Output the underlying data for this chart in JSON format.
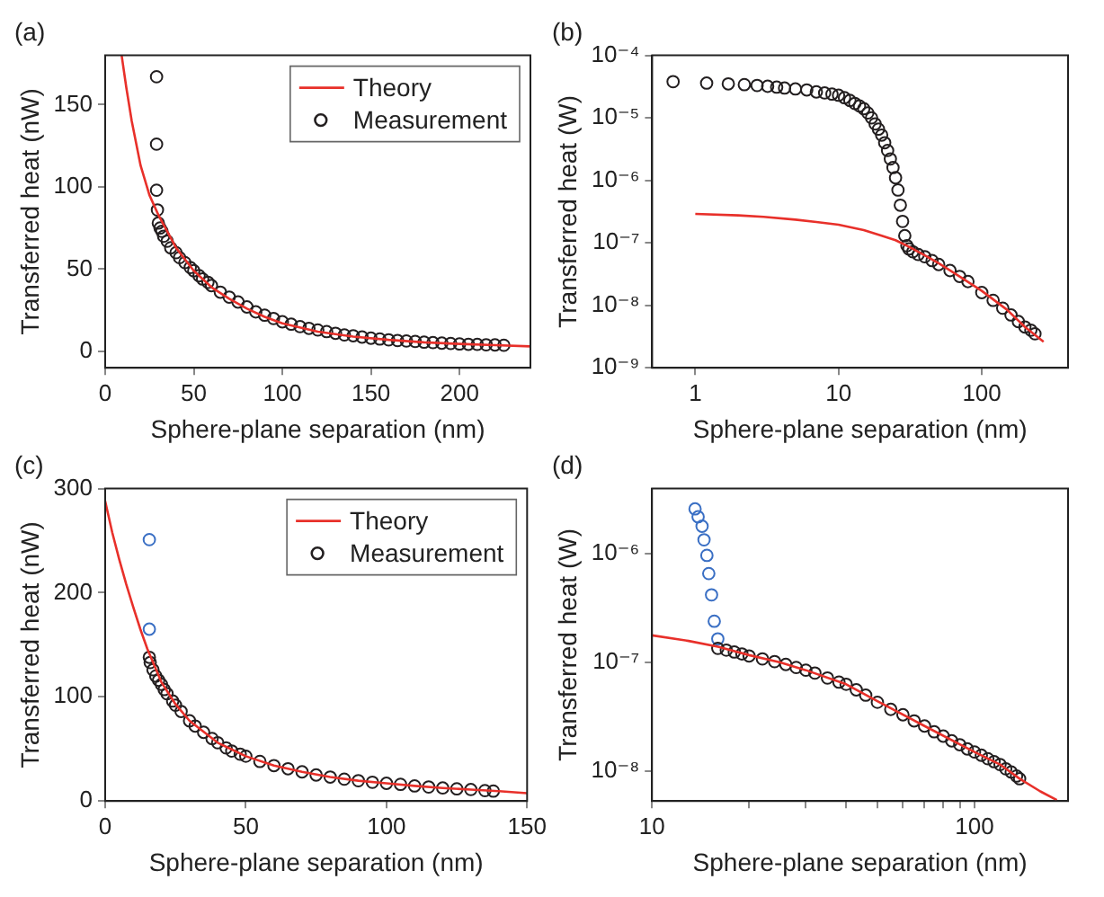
{
  "chart_data": [
    {
      "type": "scatter",
      "title": "(a)",
      "xlabel": "Sphere-plane separation (nm)",
      "ylabel": "Transferred heat (nW)",
      "xlim": [
        0,
        240
      ],
      "ylim": [
        -10,
        180
      ],
      "xticks": [
        0,
        50,
        100,
        150,
        200
      ],
      "yticks": [
        0,
        50,
        100,
        150
      ],
      "legend": "top right",
      "series": [
        {
          "name": "Theory",
          "type": "line",
          "color": "#e8302a",
          "marker": "none",
          "line_style": "solid",
          "x": [
            9.3,
            12,
            15,
            20,
            25,
            30,
            40,
            50,
            60,
            70,
            80,
            90,
            100,
            120,
            140,
            160,
            180,
            200,
            220,
            240
          ],
          "values": [
            180,
            160,
            140,
            113,
            95,
            83,
            63,
            49,
            39,
            32,
            26,
            21,
            17,
            12,
            9,
            7,
            5.5,
            4.5,
            3.8,
            3
          ]
        },
        {
          "name": "Measurement",
          "color": "#231f20",
          "marker": "circle",
          "x": [
            29,
            29,
            29,
            29.5,
            30,
            31,
            32,
            33,
            35,
            37,
            40,
            42,
            45,
            48,
            50,
            53,
            55,
            58,
            60,
            65,
            70,
            75,
            80,
            85,
            90,
            95,
            100,
            105,
            110,
            115,
            120,
            125,
            130,
            135,
            140,
            145,
            150,
            155,
            160,
            165,
            170,
            175,
            180,
            185,
            190,
            195,
            200,
            205,
            210,
            215,
            220,
            225
          ],
          "values": [
            167,
            126,
            98,
            86,
            78,
            75,
            73,
            70,
            67,
            63,
            60,
            57,
            54,
            51,
            49,
            46,
            44,
            42,
            40,
            36,
            33,
            30,
            27,
            24,
            22,
            20,
            18,
            16.5,
            15,
            14,
            13,
            12,
            11,
            10,
            9.5,
            8.7,
            8,
            7.5,
            7,
            6.6,
            6.3,
            6,
            5.6,
            5.3,
            5,
            4.8,
            4.5,
            4.3,
            4.2,
            4,
            3.9,
            3.7
          ]
        }
      ]
    },
    {
      "type": "scatter",
      "title": "(b)",
      "xlabel": "Sphere-plane separation (nm)",
      "ylabel": "Transferred heat (W)",
      "log": "xy",
      "xlim": [
        0.5,
        400
      ],
      "ylim": [
        1e-09,
        0.0001
      ],
      "xticks": [
        1,
        10,
        100
      ],
      "yticks": [
        {
          "value": 1e-09,
          "label": "10⁻⁹"
        },
        {
          "value": 1e-08,
          "label": "10⁻⁸"
        },
        {
          "value": 1e-07,
          "label": "10⁻⁷"
        },
        {
          "value": 1e-06,
          "label": "10⁻⁶"
        },
        {
          "value": 1e-05,
          "label": "10⁻⁵"
        },
        {
          "value": 0.0001,
          "label": "10⁻⁴"
        }
      ],
      "series": [
        {
          "type": "line",
          "color": "#e8302a",
          "marker": "none",
          "line_style": "solid",
          "x": [
            1,
            2,
            3,
            5,
            7,
            10,
            15,
            20,
            25,
            30,
            40,
            50,
            70,
            100,
            150,
            200,
            270
          ],
          "values": [
            2.9e-07,
            2.75e-07,
            2.6e-07,
            2.35e-07,
            2.15e-07,
            1.95e-07,
            1.6e-07,
            1.3e-07,
            1.1e-07,
            9e-08,
            6.3e-08,
            4.7e-08,
            2.9e-08,
            1.7e-08,
            8.5e-09,
            4.5e-09,
            2.6e-09
          ]
        },
        {
          "color": "#231f20",
          "marker": "circle",
          "x": [
            0.7,
            1.2,
            1.7,
            2.2,
            2.7,
            3.2,
            3.7,
            4.2,
            5,
            6,
            7,
            8,
            9,
            10,
            11,
            12,
            13,
            14,
            15,
            16,
            17,
            18,
            19,
            20,
            21,
            22,
            23,
            24,
            25,
            26,
            27,
            28,
            29,
            30,
            31,
            33,
            36,
            40,
            45,
            50,
            60,
            70,
            80,
            100,
            120,
            140,
            160,
            180,
            200,
            220,
            235
          ],
          "values": [
            3.8e-05,
            3.6e-05,
            3.5e-05,
            3.4e-05,
            3.3e-05,
            3.2e-05,
            3.1e-05,
            3e-05,
            2.9e-05,
            2.8e-05,
            2.6e-05,
            2.5e-05,
            2.4e-05,
            2.3e-05,
            2.1e-05,
            1.9e-05,
            1.7e-05,
            1.55e-05,
            1.4e-05,
            1.2e-05,
            1e-05,
            8e-06,
            6.6e-06,
            5.3e-06,
            4e-06,
            3e-06,
            2.2e-06,
            1.6e-06,
            1.1e-06,
            7e-07,
            4e-07,
            2.2e-07,
            1.3e-07,
            9e-08,
            8e-08,
            7.2e-08,
            6.5e-08,
            6e-08,
            5.2e-08,
            4.5e-08,
            3.6e-08,
            2.9e-08,
            2.4e-08,
            1.6e-08,
            1.2e-08,
            9e-09,
            7e-09,
            5.5e-09,
            4.5e-09,
            4e-09,
            3.5e-09
          ]
        }
      ]
    },
    {
      "type": "scatter",
      "title": "(c)",
      "xlabel": "Sphere-plane separation (nm)",
      "ylabel": "Transferred heat (nW)",
      "xlim": [
        0,
        150
      ],
      "ylim": [
        0,
        300
      ],
      "xticks": [
        0,
        50,
        100,
        150
      ],
      "yticks": [
        0,
        100,
        200,
        300
      ],
      "legend": "top right",
      "series": [
        {
          "name": "Theory",
          "type": "line",
          "color": "#e8302a",
          "marker": "none",
          "line_style": "solid",
          "x": [
            0,
            2.5,
            5,
            7.5,
            10,
            12.5,
            15,
            20,
            25,
            30,
            40,
            50,
            60,
            70,
            80,
            90,
            100,
            110,
            120,
            130,
            140,
            150
          ],
          "values": [
            288,
            258,
            232,
            208,
            186,
            165,
            146,
            114,
            93,
            77,
            56,
            43,
            34,
            28,
            23,
            19.5,
            17,
            14.5,
            12.5,
            11,
            9.5,
            7.5
          ]
        },
        {
          "name": "Measurement",
          "color": "#231f20",
          "marker": "circle",
          "x": [
            15.7,
            16,
            17,
            18,
            19,
            20,
            21,
            22,
            24,
            25,
            27,
            30,
            32,
            35,
            38,
            40,
            43,
            45,
            48,
            50,
            55,
            60,
            65,
            70,
            75,
            80,
            85,
            90,
            95,
            100,
            105,
            110,
            115,
            120,
            125,
            130,
            135,
            138
          ],
          "values": [
            138,
            133,
            126,
            120,
            116,
            112,
            107,
            103,
            96,
            92,
            86,
            77,
            72,
            66,
            60,
            56,
            51,
            48,
            45,
            43,
            38,
            34,
            31,
            28,
            25,
            23,
            21,
            19.5,
            18,
            17,
            16,
            14.5,
            13.5,
            12.5,
            11.7,
            11,
            10,
            9.5
          ]
        },
        {
          "color": "#3a6fc4",
          "marker": "circle",
          "x": [
            15.7,
            15.7
          ],
          "values": [
            251,
            165
          ]
        }
      ]
    },
    {
      "type": "scatter",
      "title": "(d)",
      "xlabel": "Sphere-plane separation (nm)",
      "ylabel": "Transferred heat (W)",
      "log": "xy",
      "xlim": [
        10,
        195
      ],
      "ylim": [
        5.3e-09,
        4e-06
      ],
      "xticks": [
        10,
        {
          "value": 20,
          "label": null
        },
        {
          "value": 30,
          "label": null
        },
        {
          "value": 40,
          "label": null
        },
        {
          "value": 50,
          "label": null
        },
        {
          "value": 60,
          "label": null
        },
        {
          "value": 70,
          "label": null
        },
        {
          "value": 80,
          "label": null
        },
        {
          "value": 90,
          "label": null
        },
        100
      ],
      "yticks": [
        {
          "value": 1e-08,
          "label": "10⁻⁸"
        },
        {
          "value": 1e-07,
          "label": "10⁻⁷"
        },
        {
          "value": 1e-06,
          "label": "10⁻⁶"
        }
      ],
      "series": [
        {
          "type": "line",
          "color": "#e8302a",
          "marker": "none",
          "line_style": "solid",
          "x": [
            10,
            13,
            16,
            20,
            25,
            30,
            40,
            50,
            70,
            100,
            120,
            138,
            160,
            180
          ],
          "values": [
            1.78e-07,
            1.58e-07,
            1.4e-07,
            1.17e-07,
            1e-07,
            8.5e-08,
            6.3e-08,
            4.4e-08,
            2.6e-08,
            1.5e-08,
            1.15e-08,
            8.5e-09,
            6.5e-09,
            5.4e-09
          ]
        },
        {
          "color": "#231f20",
          "marker": "circle",
          "x": [
            16,
            17,
            18,
            19,
            20,
            22,
            24,
            26,
            28,
            30,
            32,
            35,
            38,
            40,
            43,
            46,
            50,
            55,
            60,
            65,
            70,
            75,
            80,
            85,
            90,
            95,
            100,
            105,
            110,
            115,
            120,
            125,
            130,
            135,
            138
          ],
          "values": [
            1.35e-07,
            1.3e-07,
            1.25e-07,
            1.2e-07,
            1.15e-07,
            1.08e-07,
            1.02e-07,
            9.6e-08,
            9e-08,
            8.5e-08,
            8e-08,
            7.2e-08,
            6.6e-08,
            6.3e-08,
            5.6e-08,
            5e-08,
            4.3e-08,
            3.7e-08,
            3.3e-08,
            2.9e-08,
            2.6e-08,
            2.3e-08,
            2.1e-08,
            1.9e-08,
            1.75e-08,
            1.6e-08,
            1.5e-08,
            1.4e-08,
            1.3e-08,
            1.22e-08,
            1.15e-08,
            1.05e-08,
            9.8e-09,
            9e-09,
            8.5e-09
          ]
        },
        {
          "color": "#3a6fc4",
          "marker": "circle",
          "x": [
            13.6,
            13.9,
            14.3,
            14.5,
            14.8,
            15,
            15.3,
            15.6,
            16
          ],
          "values": [
            2.6e-06,
            2.2e-06,
            1.8e-06,
            1.35e-06,
            9.7e-07,
            6.6e-07,
            4.2e-07,
            2.4e-07,
            1.65e-07
          ]
        }
      ]
    }
  ]
}
